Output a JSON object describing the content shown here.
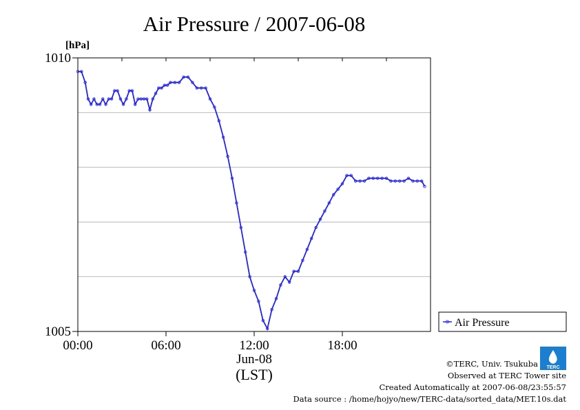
{
  "chart_data": {
    "type": "line",
    "title": "Air Pressure / 2007-06-08",
    "ylabel_unit": "[hPa]",
    "ylim": [
      1005,
      1010
    ],
    "y_ticks": [
      1005,
      1010
    ],
    "y_tick_labels": [
      "1005",
      "1010"
    ],
    "y_grid": [
      1006,
      1007,
      1008,
      1009
    ],
    "xlim_hours": [
      0,
      24
    ],
    "x_ticks_hours": [
      0,
      6,
      12,
      18
    ],
    "x_tick_labels": [
      "00:00",
      "06:00",
      "12:00",
      "18:00"
    ],
    "date_label": "Jun-08",
    "timezone_label": "(LST)",
    "grid": true,
    "legend_position": "right",
    "color": "#2222ee",
    "series": [
      {
        "name": "Air Pressure",
        "x_hours": [
          0.0,
          0.25,
          0.5,
          0.7,
          0.9,
          1.1,
          1.3,
          1.5,
          1.7,
          1.9,
          2.1,
          2.3,
          2.5,
          2.7,
          2.9,
          3.1,
          3.3,
          3.5,
          3.7,
          3.9,
          4.1,
          4.3,
          4.5,
          4.7,
          4.9,
          5.1,
          5.3,
          5.5,
          5.7,
          5.9,
          6.1,
          6.3,
          6.6,
          6.9,
          7.2,
          7.5,
          7.8,
          8.1,
          8.4,
          8.7,
          9.0,
          9.3,
          9.6,
          9.9,
          10.2,
          10.5,
          10.8,
          11.1,
          11.4,
          11.7,
          12.0,
          12.3,
          12.6,
          12.9,
          13.2,
          13.5,
          13.8,
          14.1,
          14.4,
          14.7,
          15.0,
          15.3,
          15.6,
          15.9,
          16.2,
          16.5,
          16.8,
          17.1,
          17.4,
          17.7,
          18.0,
          18.3,
          18.6,
          18.9,
          19.2,
          19.5,
          19.8,
          20.1,
          20.4,
          20.7,
          21.0,
          21.3,
          21.6,
          21.9,
          22.2,
          22.5,
          22.8,
          23.1,
          23.4,
          23.6
        ],
        "values": [
          1009.75,
          1009.75,
          1009.55,
          1009.25,
          1009.15,
          1009.25,
          1009.15,
          1009.15,
          1009.25,
          1009.15,
          1009.25,
          1009.25,
          1009.4,
          1009.4,
          1009.25,
          1009.15,
          1009.25,
          1009.4,
          1009.4,
          1009.15,
          1009.25,
          1009.25,
          1009.25,
          1009.25,
          1009.05,
          1009.25,
          1009.35,
          1009.45,
          1009.45,
          1009.5,
          1009.5,
          1009.55,
          1009.55,
          1009.55,
          1009.65,
          1009.65,
          1009.55,
          1009.45,
          1009.45,
          1009.45,
          1009.25,
          1009.1,
          1008.85,
          1008.55,
          1008.2,
          1007.8,
          1007.35,
          1006.9,
          1006.45,
          1006.0,
          1005.75,
          1005.55,
          1005.2,
          1005.05,
          1005.4,
          1005.6,
          1005.85,
          1006.0,
          1005.9,
          1006.1,
          1006.1,
          1006.3,
          1006.5,
          1006.7,
          1006.9,
          1007.05,
          1007.2,
          1007.35,
          1007.5,
          1007.6,
          1007.7,
          1007.85,
          1007.85,
          1007.75,
          1007.75,
          1007.75,
          1007.8,
          1007.8,
          1007.8,
          1007.8,
          1007.8,
          1007.75,
          1007.75,
          1007.75,
          1007.75,
          1007.8,
          1007.75,
          1007.75,
          1007.75,
          1007.65
        ]
      }
    ]
  },
  "footer": {
    "copyright": "©TERC, Univ. Tsukuba",
    "observed": "Observed at TERC Tower site",
    "created": "Created Automatically at 2007-06-08/23:55:57",
    "source": "Data source : /home/hojyo/new/TERC-data/sorted_data/MET.10s.dat",
    "logo_text": "TERC"
  }
}
